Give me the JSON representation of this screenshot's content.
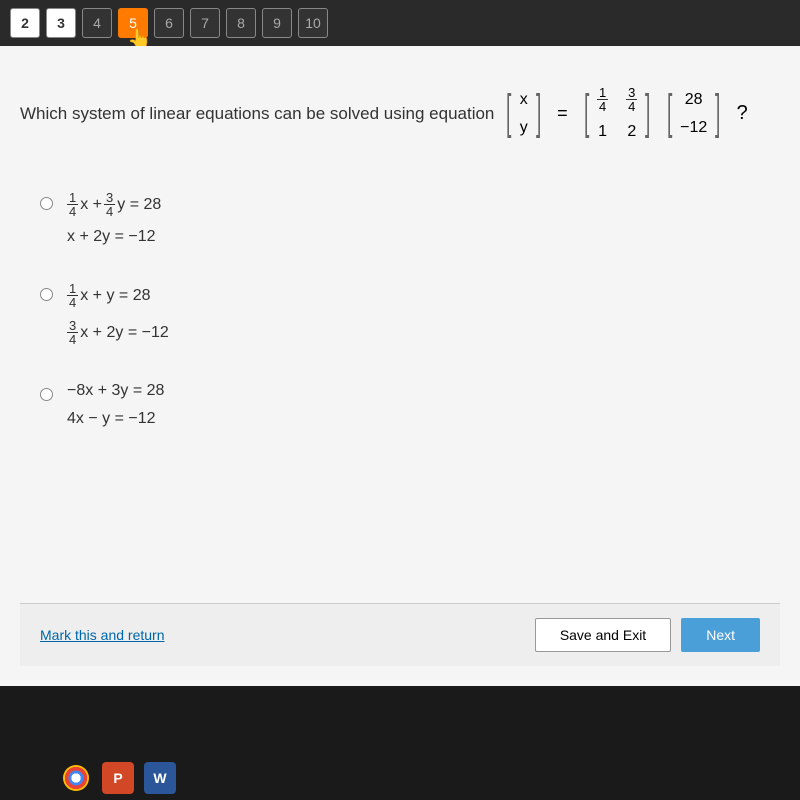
{
  "nav": {
    "items": [
      {
        "label": "2",
        "style": "active-white"
      },
      {
        "label": "3",
        "style": "active-white"
      },
      {
        "label": "4",
        "style": ""
      },
      {
        "label": "5",
        "style": "active-orange"
      },
      {
        "label": "6",
        "style": ""
      },
      {
        "label": "7",
        "style": ""
      },
      {
        "label": "8",
        "style": ""
      },
      {
        "label": "9",
        "style": ""
      },
      {
        "label": "10",
        "style": ""
      }
    ]
  },
  "question": {
    "prompt": "Which system of linear equations can be solved using equation",
    "vector_left": [
      "x",
      "y"
    ],
    "matrix": {
      "r1c1_num": "1",
      "r1c1_den": "4",
      "r1c2_num": "3",
      "r1c2_den": "4",
      "r2c1": "1",
      "r2c2": "2"
    },
    "vector_right": [
      "28",
      "−12"
    ],
    "qmark": "?"
  },
  "options": {
    "a": {
      "eq1_frac1_num": "1",
      "eq1_frac1_den": "4",
      "eq1_mid": "x +",
      "eq1_frac2_num": "3",
      "eq1_frac2_den": "4",
      "eq1_rest": "y = 28",
      "eq2": "x + 2y = −12"
    },
    "b": {
      "eq1_frac1_num": "1",
      "eq1_frac1_den": "4",
      "eq1_rest": "x + y = 28",
      "eq2_frac_num": "3",
      "eq2_frac_den": "4",
      "eq2_rest": "x + 2y = −12"
    },
    "c": {
      "eq1": "−8x + 3y = 28",
      "eq2": "4x − y = −12"
    }
  },
  "footer": {
    "mark_return": "Mark this and return",
    "save_exit": "Save and Exit",
    "next": "Next"
  },
  "taskbar": {
    "ppt": "P",
    "word": "W"
  }
}
